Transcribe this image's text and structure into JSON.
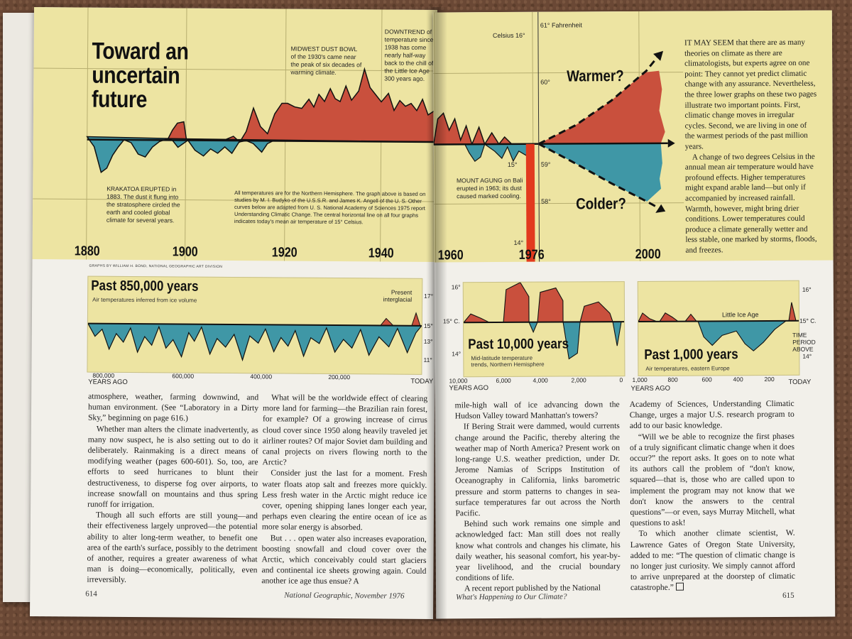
{
  "left_page": {
    "main_chart": {
      "title": "Toward an uncertain future",
      "annotations": {
        "krakatoa": "KRAKATOA ERUPTED in 1883. The dust it flung into the stratosphere circled the earth and cooled global climate for several years.",
        "dust_bowl": "MIDWEST DUST BOWL of the 1930's came near the peak of six decades of warming climate.",
        "downtrend": "DOWNTREND of temperature since 1938 has come nearly half-way back to the chill of the Little Ice Age 300 years ago.",
        "note": "All temperatures are for the Northern Hemisphere. The graph above is based on studies by M. I. Budyko of the U.S.S.R. and James K. Angell of the U. S. Other curves below are adapted from U. S. National Academy of Sciences 1975 report Understanding Climatic Change. The central horizontal line on all four graphs indicates today's mean air temperature of 15° Celsius."
      },
      "years": [
        "1880",
        "1900",
        "1920",
        "1940"
      ],
      "credit": "GRAPHS BY WILLIAM H. BOND, NATIONAL GEOGRAPHIC ART DIVISION"
    },
    "panel_850k": {
      "title": "Past 850,000 years",
      "subtitle": "Air temperatures inferred from ice volume",
      "present_label": "Present interglacial",
      "x_ticks": [
        "800,000",
        "600,000",
        "400,000",
        "200,000",
        "TODAY"
      ],
      "x_unit": "YEARS AGO",
      "y_ticks": [
        "17°",
        "15° C",
        "13°",
        "11°"
      ]
    },
    "columns": [
      "atmosphere, weather, farming downwind, and human environment. (See “Laboratory in a Dirty Sky,” beginning on page 616.)",
      "Whether man alters the climate inadvertently, as many now suspect, he is also setting out to do it deliberately. Rainmaking is a direct means of modifying weather (pages 600-601). So, too, are efforts to seed hurricanes to blunt their destructiveness, to disperse fog over airports, to increase snowfall on mountains and thus spring runoff for irrigation.",
      "Though all such efforts are still young—and their effectiveness largely unproved—the potential ability to alter long-term weather, to benefit one area of the earth's surface, possibly to the detriment of another, requires a greater awareness of what man is doing—economically, politically, even irreversibly.",
      "What will be the worldwide effect of clearing more land for farming—the Brazilian rain forest, for example? Of a growing increase of cirrus cloud cover since 1950 along heavily traveled jet airliner routes? Of major Soviet dam building and canal projects on rivers flowing north to the Arctic?",
      "Consider just the last for a moment. Fresh water floats atop salt and freezes more quickly. Less fresh water in the Arctic might reduce ice cover, opening shipping lanes longer each year, perhaps even clearing the entire ocean of ice as more solar energy is absorbed.",
      "But . . . open water also increases evaporation, boosting snowfall and cloud cover over the Arctic, which conceivably could start glaciers and continental ice sheets growing again. Could another ice age thus ensue? A"
    ],
    "folio_num": "614",
    "folio_title": "National Geographic, November 1976"
  },
  "right_page": {
    "main_chart": {
      "scale_celsius": "Celsius 16°",
      "scale_fahrenheit": "61° Fahrenheit",
      "f60": "60°",
      "c15": "15°",
      "f59": "59°",
      "f58": "58°",
      "c14": "14°",
      "warmer": "Warmer?",
      "colder": "Colder?",
      "agung": "MOUNT AGUNG on Bali erupted in 1963; its dust caused marked cooling.",
      "years": [
        "1960",
        "1976",
        "2000"
      ]
    },
    "sidebar": [
      "IT MAY SEEM that there are as many theories on climate as there are climatologists, but experts agree on one point: They cannot yet predict climatic change with any assurance. Nevertheless, the three lower graphs on these two pages illustrate two important points. First, climatic change moves in irregular cycles. Second, we are living in one of the warmest periods of the past million years.",
      "A change of two degrees Celsius in the annual mean air temperature would have profound effects. Higher temperatures might expand arable land—but only if accompanied by increased rainfall. Warmth, however, might bring drier conditions. Lower temperatures could produce a climate generally wetter and less stable, one marked by storms, floods, and freezes."
    ],
    "panel_10k": {
      "title": "Past 10,000 years",
      "subtitle": "Mid-latitude temperature trends, Northern Hemisphere",
      "x_ticks": [
        "10,000",
        "6,000",
        "4,000",
        "2,000",
        "0"
      ],
      "x_unit": "YEARS AGO",
      "y_ticks": [
        "16°",
        "15° C.",
        "14°"
      ]
    },
    "panel_1k": {
      "title": "Past 1,000 years",
      "subtitle": "Air temperatures, eastern Europe",
      "little_ice_age": "Little Ice Age",
      "time_period": "TIME PERIOD ABOVE",
      "x_ticks": [
        "1,000",
        "800",
        "600",
        "400",
        "200",
        "TODAY"
      ],
      "x_unit": "YEARS AGO",
      "y_ticks": [
        "16°",
        "15° C.",
        "14°"
      ]
    },
    "columns": [
      "mile-high wall of ice advancing down the Hudson Valley toward Manhattan's towers?",
      "If Bering Strait were dammed, would currents change around the Pacific, thereby altering the weather map of North America? Present work on long-range U.S. weather prediction, under Dr. Jerome Namias of Scripps Institution of Oceanography in California, links barometric pressure and storm patterns to changes in sea-surface temperatures far out across the North Pacific.",
      "Behind such work remains one simple and acknowledged fact: Man still does not really know what controls and changes his climate, his daily weather, his seasonal comfort, his year-by-year livelihood, and the crucial boundary conditions of life.",
      "A recent report published by the National",
      "Academy of Sciences, Understanding Climatic Change, urges a major U.S. research program to add to our basic knowledge.",
      "“Will we be able to recognize the first phases of a truly significant climatic change when it does occur?” the report asks. It goes on to note what its authors call the problem of “don't know, squared—that is, those who are called upon to implement the program may not know that we don't know the answers to the central questions”—or even, says Murray Mitchell, what questions to ask!",
      "To which another climate scientist, W. Lawrence Gates of Oregon State University, added to me: “The question of climatic change is no longer just curiosity. We simply cannot afford to arrive unprepared at the doorstep of climatic catastrophe.”"
    ],
    "folio_title": "What's Happening to Our Climate?",
    "folio_num": "615"
  },
  "colors": {
    "chart_bg": "#ede4a2",
    "warm": "#c9503d",
    "cold": "#3f97a6",
    "marker": "#e23a1e"
  }
}
